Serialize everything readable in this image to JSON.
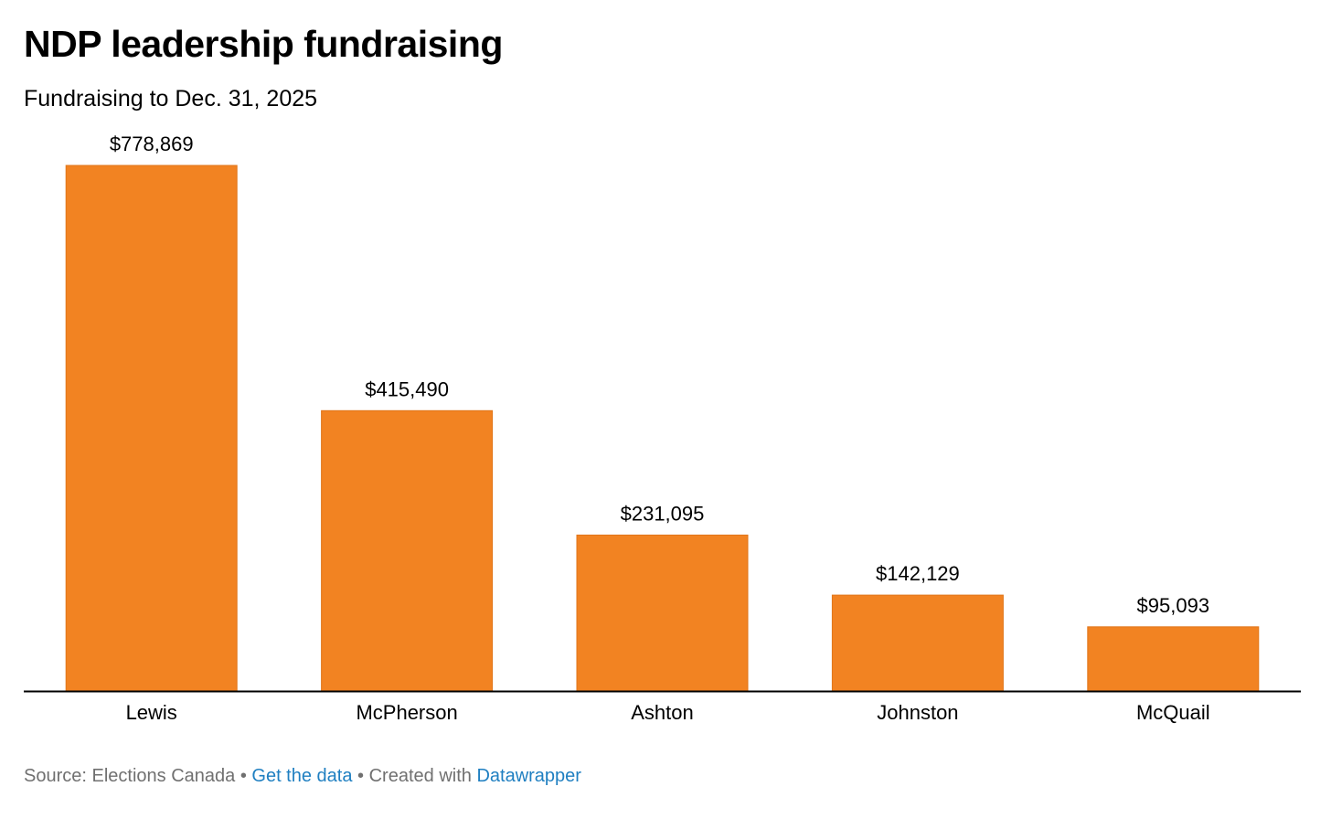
{
  "chart_data": {
    "type": "bar",
    "title": "NDP leadership fundraising",
    "subtitle": "Fundraising to Dec. 31, 2025",
    "categories": [
      "Lewis",
      "McPherson",
      "Ashton",
      "Johnston",
      "McQuail"
    ],
    "values": [
      778869,
      415490,
      231095,
      142129,
      95093
    ],
    "value_labels": [
      "$778,869",
      "$415,490",
      "$231,095",
      "$142,129",
      "$95,093"
    ],
    "bar_color": "#f28322",
    "xlabel": "",
    "ylabel": "",
    "ylim": [
      0,
      778869
    ],
    "grid": false,
    "legend": "none"
  },
  "footer": {
    "source": "Source: Elections Canada",
    "separator": "•",
    "get_data": "Get the data",
    "created_with": "Created with",
    "datawrapper": "Datawrapper"
  },
  "colors": {
    "bar": "#f28322",
    "bar_edge": "#e0761a",
    "axis": "#000000",
    "footer_text": "#707070",
    "link": "#1f7fc1"
  }
}
